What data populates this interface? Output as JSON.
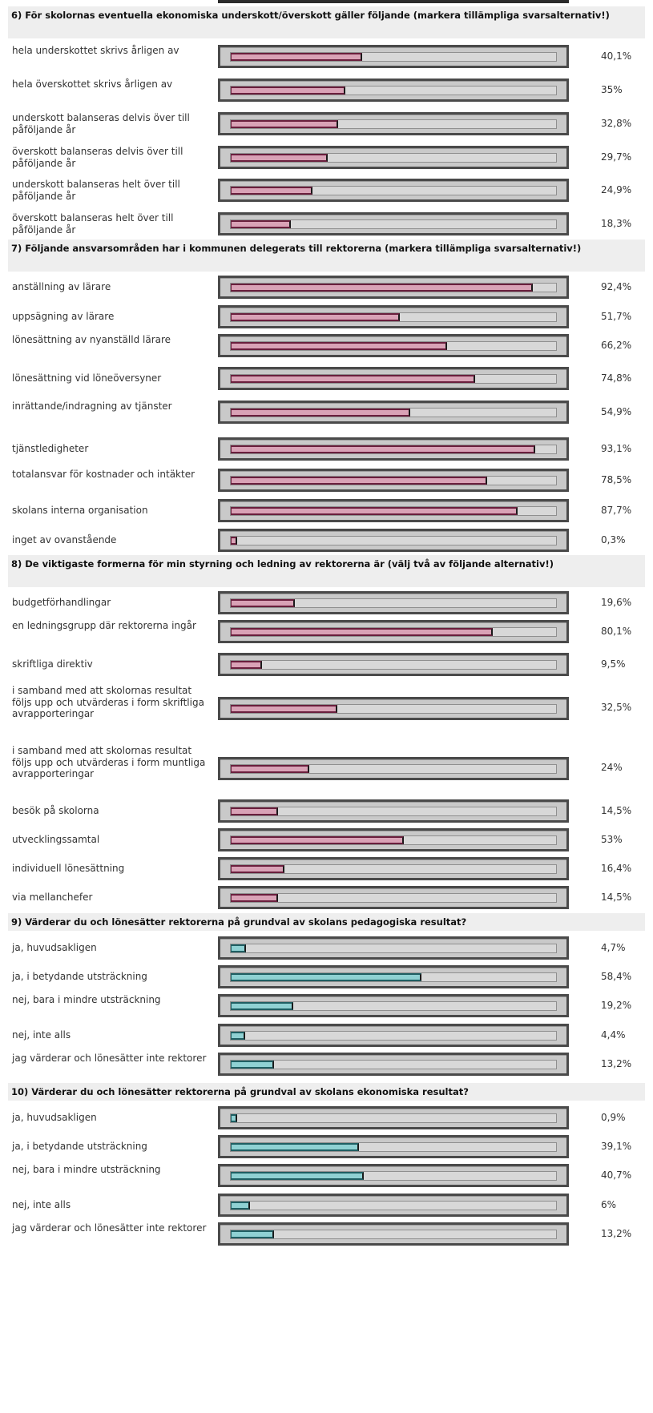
{
  "colors": {
    "pink_fill": "#d9a2b6",
    "pink_edge": "#6a1f3d",
    "teal_fill": "#8fd1d3",
    "teal_edge": "#1f5f63",
    "track": "#c9c9c9",
    "frame": "#4a4a4a",
    "header_bg": "#eeeeee"
  },
  "chart_data": [
    {
      "type": "bar",
      "orientation": "horizontal",
      "title": "6) För skolornas eventuella ekonomiska underskott/överskott gäller följande (markera tillämpliga svarsalternativ!)",
      "unit": "%",
      "xlim": [
        0,
        100
      ],
      "color": "pink",
      "items": [
        {
          "label": "hela underskottet skrivs årligen av",
          "value": 40.1,
          "display": "40,1%"
        },
        {
          "label": "hela överskottet skrivs årligen av",
          "value": 35,
          "display": "35%"
        },
        {
          "label": "underskott balanseras delvis över till påföljande år",
          "value": 32.8,
          "display": "32,8%"
        },
        {
          "label": "överskott balanseras delvis över till påföljande år",
          "value": 29.7,
          "display": "29,7%"
        },
        {
          "label": "underskott balanseras helt över till påföljande år",
          "value": 24.9,
          "display": "24,9%"
        },
        {
          "label": "överskott balanseras helt över till påföljande år",
          "value": 18.3,
          "display": "18,3%"
        }
      ]
    },
    {
      "type": "bar",
      "orientation": "horizontal",
      "title": "7) Följande ansvarsområden har i kommunen delegerats till rektorerna (markera tillämpliga svarsalternativ!)",
      "unit": "%",
      "xlim": [
        0,
        100
      ],
      "color": "pink",
      "items": [
        {
          "label": "anställning av lärare",
          "value": 92.4,
          "display": "92,4%"
        },
        {
          "label": "uppsägning av lärare",
          "value": 51.7,
          "display": "51,7%"
        },
        {
          "label": "lönesättning av nyanställd lärare",
          "value": 66.2,
          "display": "66,2%"
        },
        {
          "label": "lönesättning vid löneöversyner",
          "value": 74.8,
          "display": "74,8%"
        },
        {
          "label": "inrättande/indragning av tjänster",
          "value": 54.9,
          "display": "54,9%"
        },
        {
          "label": "tjänstledigheter",
          "value": 93.1,
          "display": "93,1%"
        },
        {
          "label": "totalansvar för kostnader och intäkter",
          "value": 78.5,
          "display": "78,5%"
        },
        {
          "label": "skolans interna organisation",
          "value": 87.7,
          "display": "87,7%"
        },
        {
          "label": "inget av ovanstående",
          "value": 0.3,
          "display": "0,3%"
        }
      ]
    },
    {
      "type": "bar",
      "orientation": "horizontal",
      "title": "8) De viktigaste formerna för min styrning och ledning av rektorerna är (välj två av följande alternativ!)",
      "unit": "%",
      "xlim": [
        0,
        100
      ],
      "color": "pink",
      "items": [
        {
          "label": "budgetförhandlingar",
          "value": 19.6,
          "display": "19,6%"
        },
        {
          "label": "en ledningsgrupp där rektorerna ingår",
          "value": 80.1,
          "display": "80,1%"
        },
        {
          "label": "skriftliga direktiv",
          "value": 9.5,
          "display": "9,5%"
        },
        {
          "label": "i samband med att skolornas resultat följs upp och utvärderas i form skriftliga avrapporteringar",
          "value": 32.5,
          "display": "32,5%"
        },
        {
          "label": "i samband med att skolornas resultat följs upp och utvärderas i form muntliga avrapporteringar",
          "value": 24,
          "display": "24%"
        },
        {
          "label": "besök på skolorna",
          "value": 14.5,
          "display": "14,5%"
        },
        {
          "label": "utvecklingssamtal",
          "value": 53,
          "display": "53%"
        },
        {
          "label": "individuell lönesättning",
          "value": 16.4,
          "display": "16,4%"
        },
        {
          "label": "via mellanchefer",
          "value": 14.5,
          "display": "14,5%"
        }
      ]
    },
    {
      "type": "bar",
      "orientation": "horizontal",
      "title": "9) Värderar du och lönesätter rektorerna på grundval av skolans pedagogiska resultat?",
      "unit": "%",
      "xlim": [
        0,
        100
      ],
      "color": "teal",
      "items": [
        {
          "label": "ja, huvudsakligen",
          "value": 4.7,
          "display": "4,7%"
        },
        {
          "label": "ja, i betydande utsträckning",
          "value": 58.4,
          "display": "58,4%"
        },
        {
          "label": "nej, bara i mindre utsträckning",
          "value": 19.2,
          "display": "19,2%"
        },
        {
          "label": "nej, inte alls",
          "value": 4.4,
          "display": "4,4%"
        },
        {
          "label": "jag värderar och lönesätter inte rektorer",
          "value": 13.2,
          "display": "13,2%"
        }
      ]
    },
    {
      "type": "bar",
      "orientation": "horizontal",
      "title": "10) Värderar du och lönesätter rektorerna på grundval av skolans ekonomiska resultat?",
      "unit": "%",
      "xlim": [
        0,
        100
      ],
      "color": "teal",
      "items": [
        {
          "label": "ja, huvudsakligen",
          "value": 0.9,
          "display": "0,9%"
        },
        {
          "label": "ja, i betydande utsträckning",
          "value": 39.1,
          "display": "39,1%"
        },
        {
          "label": "nej, bara i mindre utsträckning",
          "value": 40.7,
          "display": "40,7%"
        },
        {
          "label": "nej, inte alls",
          "value": 6,
          "display": "6%"
        },
        {
          "label": "jag värderar och lönesätter inte rektorer",
          "value": 13.2,
          "display": "13,2%"
        }
      ]
    }
  ]
}
